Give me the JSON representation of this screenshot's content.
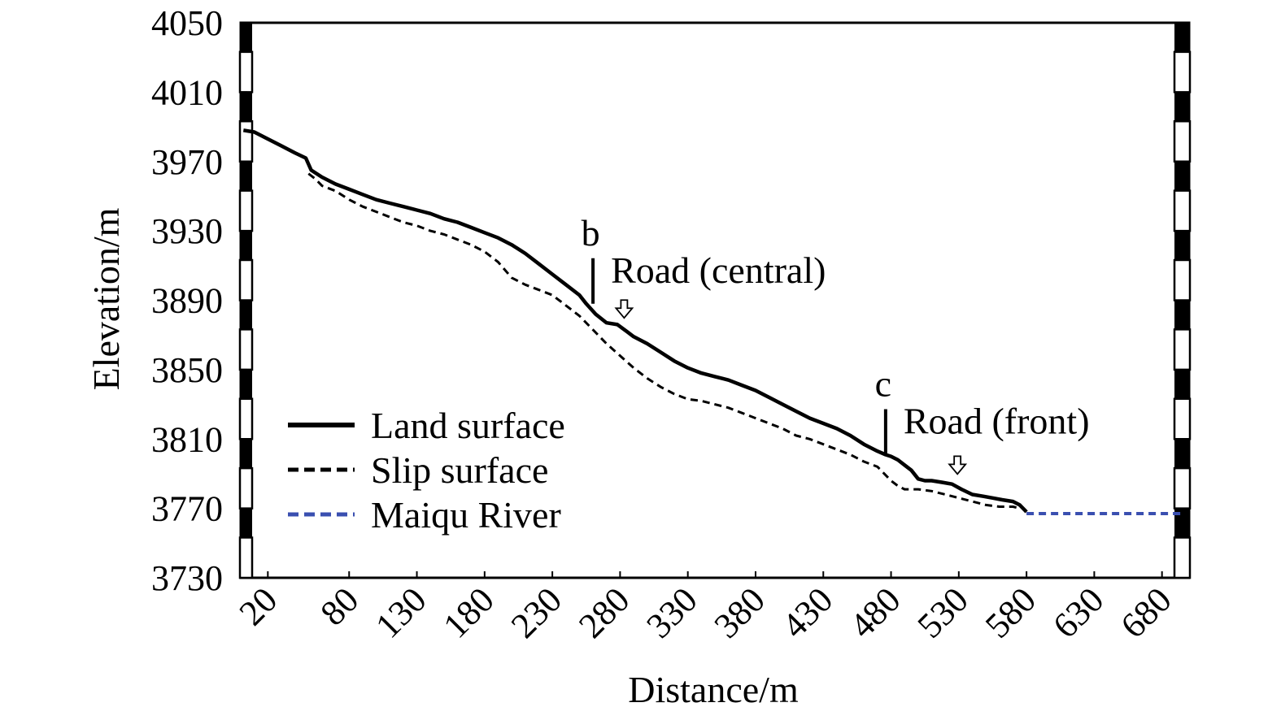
{
  "chart_data": {
    "type": "line",
    "xlabel": "Distance/m",
    "ylabel": "Elevation/m",
    "xlim": [
      0,
      700
    ],
    "ylim": [
      3730,
      4050
    ],
    "xticks": [
      20,
      80,
      130,
      180,
      230,
      280,
      330,
      380,
      430,
      480,
      530,
      580,
      630,
      680
    ],
    "yticks": [
      4050,
      4010,
      3970,
      3930,
      3890,
      3850,
      3810,
      3770,
      3730
    ],
    "grid": false,
    "legend_position": "bottom-left",
    "series": [
      {
        "name": "Land surface",
        "style": "solid",
        "color": "#000000",
        "x": [
          2,
          10,
          20,
          30,
          40,
          48,
          52,
          60,
          70,
          80,
          90,
          100,
          110,
          120,
          130,
          140,
          150,
          160,
          170,
          180,
          190,
          200,
          210,
          220,
          230,
          240,
          250,
          255,
          262,
          270,
          278,
          285,
          290,
          300,
          310,
          320,
          330,
          340,
          350,
          360,
          370,
          380,
          390,
          400,
          410,
          420,
          430,
          440,
          450,
          460,
          470,
          476,
          480,
          485,
          490,
          495,
          500,
          505,
          510,
          518,
          525,
          532,
          540,
          548,
          555,
          562,
          570,
          575,
          580
        ],
        "y": [
          3988,
          3987,
          3983,
          3979,
          3975,
          3972,
          3965,
          3961,
          3957,
          3954,
          3951,
          3948,
          3946,
          3944,
          3942,
          3940,
          3937,
          3935,
          3932,
          3929,
          3926,
          3922,
          3917,
          3911,
          3905,
          3899,
          3893,
          3888,
          3882,
          3877,
          3876,
          3872,
          3869,
          3865,
          3860,
          3855,
          3851,
          3848,
          3846,
          3844,
          3841,
          3838,
          3834,
          3830,
          3826,
          3822,
          3819,
          3816,
          3812,
          3807,
          3803,
          3801,
          3800,
          3798,
          3795,
          3792,
          3787,
          3786,
          3786,
          3785,
          3784,
          3781,
          3778,
          3777,
          3776,
          3775,
          3774,
          3772,
          3768
        ]
      },
      {
        "name": "Slip surface",
        "style": "dashed",
        "color": "#000000",
        "x": [
          50,
          55,
          60,
          70,
          80,
          90,
          100,
          110,
          120,
          130,
          140,
          150,
          160,
          170,
          180,
          190,
          200,
          210,
          220,
          230,
          240,
          250,
          260,
          270,
          280,
          290,
          300,
          310,
          320,
          330,
          340,
          350,
          360,
          370,
          380,
          390,
          400,
          410,
          420,
          430,
          440,
          450,
          460,
          470,
          475,
          480,
          485,
          490,
          500,
          510,
          520,
          530,
          540,
          550,
          560,
          570,
          575
        ],
        "y": [
          3963,
          3960,
          3956,
          3953,
          3948,
          3944,
          3941,
          3938,
          3935,
          3933,
          3930,
          3928,
          3925,
          3922,
          3918,
          3912,
          3903,
          3899,
          3896,
          3893,
          3887,
          3881,
          3873,
          3865,
          3858,
          3851,
          3845,
          3840,
          3836,
          3833,
          3832,
          3830,
          3828,
          3825,
          3822,
          3819,
          3816,
          3812,
          3810,
          3807,
          3804,
          3801,
          3797,
          3794,
          3790,
          3786,
          3783,
          3781,
          3781,
          3780,
          3778,
          3776,
          3774,
          3772,
          3771,
          3771,
          3770
        ]
      },
      {
        "name": "Maiqu River",
        "style": "dotted",
        "color": "#3a4fb0",
        "x": [
          580,
          695
        ],
        "y": [
          3767,
          3767
        ]
      }
    ],
    "annotations": [
      {
        "label": "b",
        "x": 260,
        "y": 3888,
        "text": "Road (central)",
        "arrow_x": 283,
        "arrow_y": 3877
      },
      {
        "label": "c",
        "x": 476,
        "y": 3801,
        "text": "Road (front)",
        "arrow_x": 529,
        "arrow_y": 3787
      }
    ]
  }
}
